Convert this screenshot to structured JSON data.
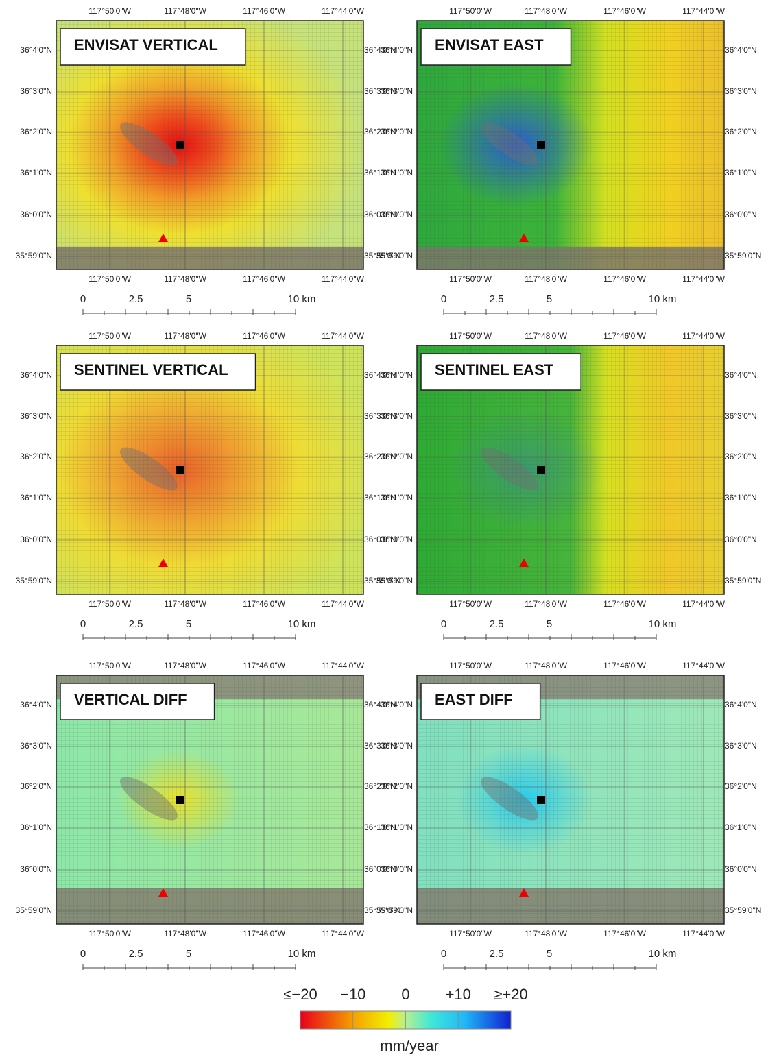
{
  "panels": [
    {
      "title": "ENVISAT VERTICAL"
    },
    {
      "title": "ENVISAT EAST"
    },
    {
      "title": "SENTINEL VERTICAL"
    },
    {
      "title": "SENTINEL EAST"
    },
    {
      "title": "VERTICAL DIFF"
    },
    {
      "title": "EAST DIFF"
    }
  ],
  "map_axes": {
    "x_labels": [
      "117°50'0\"W",
      "117°48'0\"W",
      "117°46'0\"W",
      "117°44'0\"W"
    ],
    "y_labels": [
      "36°4'0\"N",
      "36°3'0\"N",
      "36°2'0\"N",
      "36°1'0\"N",
      "36°0'0\"N",
      "35°59'0\"N"
    ],
    "scale_labels": [
      "0",
      "2.5",
      "5",
      "10 km"
    ]
  },
  "colorbar": {
    "lim": [
      -20,
      20
    ],
    "ticks": [
      {
        "value": -20,
        "label": "≤−20"
      },
      {
        "value": -10,
        "label": "−10"
      },
      {
        "value": 0,
        "label": "0"
      },
      {
        "value": 10,
        "label": "+10"
      },
      {
        "value": 20,
        "label": "≥+20"
      }
    ],
    "unit": "mm/year"
  }
}
